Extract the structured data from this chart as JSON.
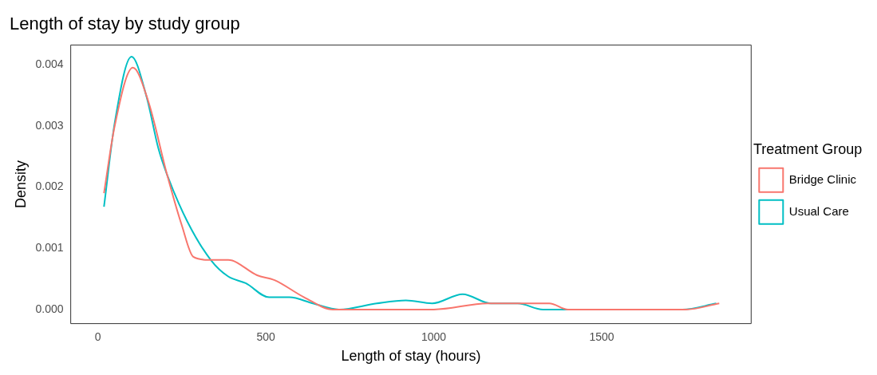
{
  "chart_data": {
    "type": "line",
    "title": "Length of stay by study group",
    "xlabel": "Length of stay (hours)",
    "ylabel": "Density",
    "legend_title": "Treatment Group",
    "legend": "right",
    "grid": false,
    "marker": "none",
    "line_style": "solid",
    "xlim": [
      -81,
      1945
    ],
    "xticks": [
      0,
      500,
      1000,
      1500
    ],
    "ylim": [
      -0.00023,
      0.00432
    ],
    "yticks": [
      {
        "value": 0,
        "label": "0.000"
      },
      {
        "value": 0.001,
        "label": "0.001"
      },
      {
        "value": 0.002,
        "label": "0.002"
      },
      {
        "value": 0.003,
        "label": "0.003"
      },
      {
        "value": 0.004,
        "label": "0.004"
      }
    ],
    "series": [
      {
        "name": "Bridge Clinic",
        "color": "#f8766d",
        "x": [
          18,
          50,
          104,
          150,
          206,
          250,
          284,
          328,
          388,
          474,
          526,
          614,
          700,
          730,
          900,
          1000,
          1160,
          1344,
          1400,
          1750,
          1850
        ],
        "values": [
          0.0019,
          0.003,
          0.00395,
          0.0034,
          0.0022,
          0.00137,
          0.00086,
          0.00081,
          0.00081,
          0.00056,
          0.00048,
          0.0002,
          0,
          0,
          0,
          0,
          0.0001,
          0.0001,
          0,
          0,
          0.0001
        ]
      },
      {
        "name": "Usual Care",
        "color": "#00bfc4",
        "x": [
          18,
          50,
          100,
          145,
          180,
          206,
          266,
          336,
          388,
          440,
          510,
          570,
          640,
          718,
          830,
          917,
          995,
          1086,
          1170,
          1250,
          1325,
          1400,
          1740,
          1841
        ],
        "values": [
          0.00168,
          0.00305,
          0.00413,
          0.00347,
          0.00263,
          0.0022,
          0.00144,
          0.00081,
          0.00054,
          0.00043,
          0.0002,
          0.0002,
          0.0001,
          0,
          0.0001,
          0.00015,
          0.0001,
          0.00025,
          0.0001,
          0.0001,
          0,
          0,
          0,
          0.0001
        ]
      }
    ]
  }
}
